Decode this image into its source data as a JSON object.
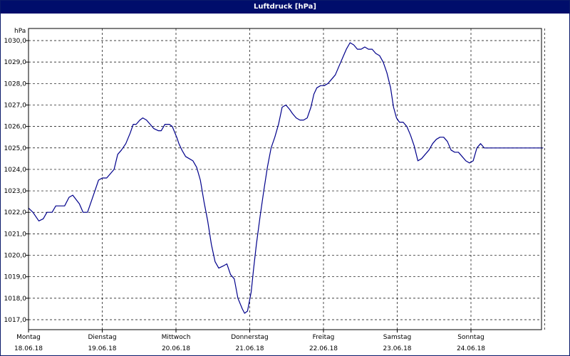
{
  "window": {
    "title": "Luftdruck [hPa]"
  },
  "chart_data": {
    "type": "line",
    "title": "Luftdruck [hPa]",
    "ylabel": "hPa",
    "xlabel": "",
    "ylim": [
      1016.7,
      1030.3
    ],
    "xlim": [
      0,
      7
    ],
    "grid": true,
    "yticks": [
      "1017,0",
      "1018,0",
      "1019,0",
      "1020,0",
      "1021,0",
      "1022,0",
      "1023,0",
      "1024,0",
      "1025,0",
      "1026,0",
      "1027,0",
      "1028,0",
      "1029,0",
      "1030,0"
    ],
    "ytick_values": [
      1017,
      1018,
      1019,
      1020,
      1021,
      1022,
      1023,
      1024,
      1025,
      1026,
      1027,
      1028,
      1029,
      1030
    ],
    "days": [
      {
        "name": "Montag",
        "date": "18.06.18"
      },
      {
        "name": "Dienstag",
        "date": "19.06.18"
      },
      {
        "name": "Mittwoch",
        "date": "20.06.18"
      },
      {
        "name": "Donnerstag",
        "date": "21.06.18"
      },
      {
        "name": "Freitag",
        "date": "22.06.18"
      },
      {
        "name": "Samstag",
        "date": "23.06.18"
      },
      {
        "name": "Sonntag",
        "date": "24.06.18"
      }
    ],
    "series": [
      {
        "color": "#00008b",
        "x": [
          0.0,
          0.06,
          0.14,
          0.2,
          0.25,
          0.32,
          0.37,
          0.43,
          0.49,
          0.55,
          0.6,
          0.69,
          0.74,
          0.8,
          0.85,
          0.9,
          0.95,
          1.0,
          1.06,
          1.11,
          1.16,
          1.21,
          1.26,
          1.32,
          1.38,
          1.42,
          1.46,
          1.51,
          1.55,
          1.6,
          1.65,
          1.7,
          1.76,
          1.8,
          1.85,
          1.91,
          1.95,
          2.01,
          2.04,
          2.08,
          2.13,
          2.18,
          2.23,
          2.28,
          2.33,
          2.38,
          2.43,
          2.48,
          2.53,
          2.58,
          2.64,
          2.69,
          2.74,
          2.79,
          2.84,
          2.9,
          2.93,
          2.97,
          3.02,
          3.05,
          3.09,
          3.14,
          3.19,
          3.24,
          3.29,
          3.34,
          3.39,
          3.44,
          3.49,
          3.54,
          3.58,
          3.63,
          3.68,
          3.73,
          3.78,
          3.83,
          3.87,
          3.91,
          3.96,
          4.01,
          4.06,
          4.11,
          4.16,
          4.21,
          4.26,
          4.31,
          4.36,
          4.41,
          4.46,
          4.51,
          4.56,
          4.61,
          4.66,
          4.71,
          4.76,
          4.81,
          4.86,
          4.91,
          4.95,
          4.99,
          5.03,
          5.08,
          5.13,
          5.18,
          5.23,
          5.28,
          5.33,
          5.38,
          5.43,
          5.48,
          5.53,
          5.58,
          5.63,
          5.68,
          5.73,
          5.78,
          5.83,
          5.88,
          5.93,
          5.98,
          6.03,
          6.08,
          6.13,
          6.18,
          6.23,
          6.28,
          6.33,
          6.38,
          6.43,
          6.48,
          6.53,
          6.58,
          6.63,
          6.68,
          6.73,
          6.78,
          6.83,
          6.88,
          6.93,
          6.98
        ],
        "values": [
          1022.2,
          1022.0,
          1021.6,
          1021.7,
          1022.0,
          1022.0,
          1022.3,
          1022.3,
          1022.3,
          1022.7,
          1022.8,
          1022.4,
          1022.0,
          1022.0,
          1022.5,
          1023.0,
          1023.5,
          1023.6,
          1023.6,
          1023.8,
          1024.0,
          1024.7,
          1024.9,
          1025.2,
          1025.7,
          1026.1,
          1026.1,
          1026.3,
          1026.4,
          1026.3,
          1026.1,
          1025.9,
          1025.8,
          1025.8,
          1026.1,
          1026.1,
          1026.0,
          1025.5,
          1025.2,
          1024.9,
          1024.6,
          1024.5,
          1024.4,
          1024.1,
          1023.5,
          1022.5,
          1021.6,
          1020.5,
          1019.7,
          1019.4,
          1019.5,
          1019.6,
          1019.1,
          1018.9,
          1018.0,
          1017.5,
          1017.3,
          1017.4,
          1018.3,
          1019.3,
          1020.5,
          1021.8,
          1023.0,
          1024.1,
          1025.0,
          1025.5,
          1026.1,
          1026.9,
          1027.0,
          1026.8,
          1026.6,
          1026.4,
          1026.3,
          1026.3,
          1026.4,
          1026.9,
          1027.5,
          1027.8,
          1027.9,
          1027.9,
          1028.0,
          1028.2,
          1028.4,
          1028.8,
          1029.2,
          1029.6,
          1029.9,
          1029.8,
          1029.6,
          1029.6,
          1029.7,
          1029.6,
          1029.6,
          1029.4,
          1029.3,
          1029.0,
          1028.5,
          1027.8,
          1026.9,
          1026.4,
          1026.2,
          1026.2,
          1026.0,
          1025.6,
          1025.1,
          1024.4,
          1024.5,
          1024.7,
          1024.9,
          1025.2,
          1025.4,
          1025.5,
          1025.5,
          1025.3,
          1024.9,
          1024.8,
          1024.8,
          1024.6,
          1024.4,
          1024.3,
          1024.4,
          1025.0,
          1025.2,
          1025.0,
          1025.0,
          1025.0,
          1025.0,
          1025.0,
          1025.0,
          1025.0,
          1025.0,
          1025.0,
          1025.0,
          1025.0,
          1025.0,
          1025.0,
          1025.0,
          1025.0,
          1025.0,
          1025.0
        ]
      }
    ]
  }
}
